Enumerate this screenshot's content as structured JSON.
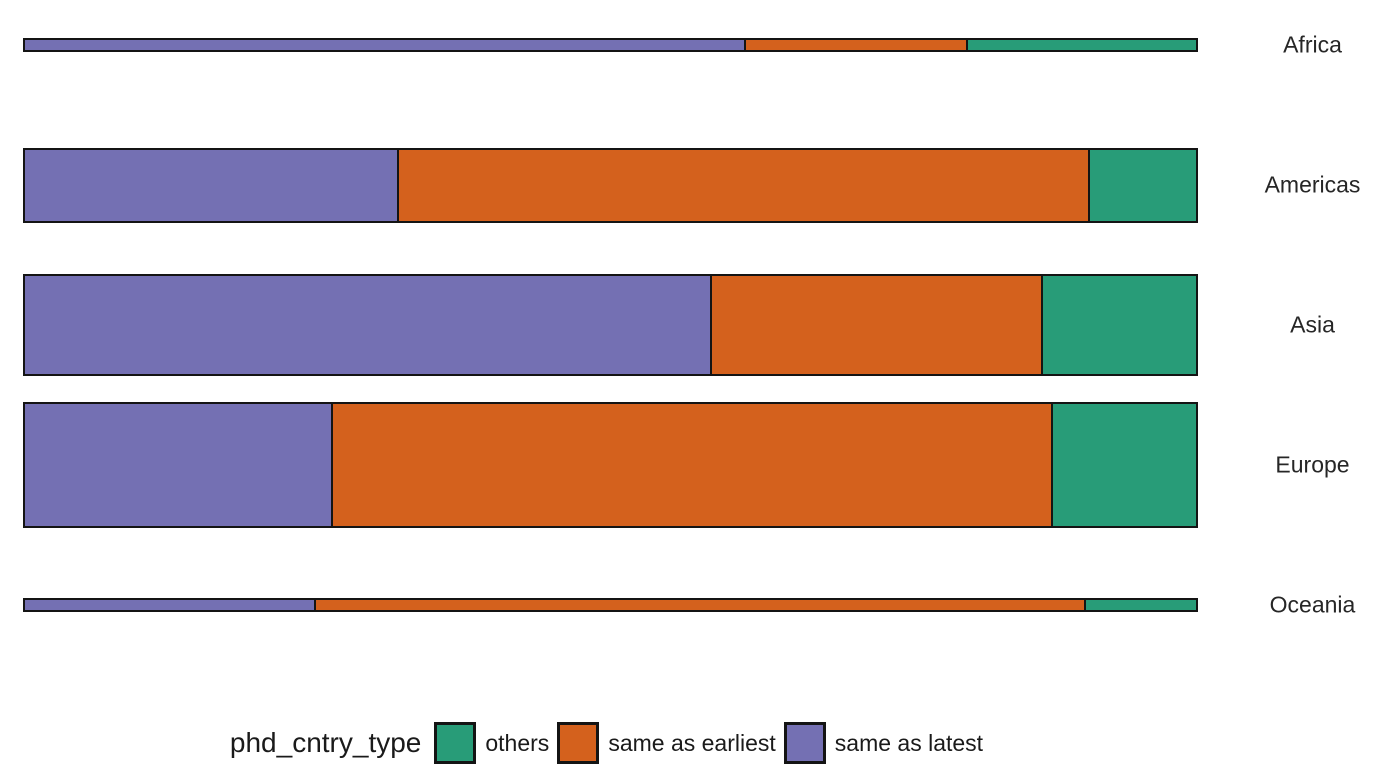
{
  "chart_data": {
    "type": "bar",
    "subtype": "mosaic-stacked-horizontal",
    "title": "",
    "categories": [
      "Africa",
      "Americas",
      "Asia",
      "Europe",
      "Oceania"
    ],
    "group_weights": [
      0.042,
      0.227,
      0.308,
      0.381,
      0.042
    ],
    "series": [
      {
        "name": "same as latest",
        "color": "#7470B3",
        "proportions": [
          0.615,
          0.32,
          0.586,
          0.264,
          0.249
        ]
      },
      {
        "name": "same as earliest",
        "color": "#D4611D",
        "proportions": [
          0.191,
          0.59,
          0.284,
          0.614,
          0.657
        ]
      },
      {
        "name": "others",
        "color": "#289C78",
        "proportions": [
          0.194,
          0.09,
          0.13,
          0.122,
          0.094
        ]
      }
    ],
    "legend": {
      "title": "phd_cntry_type",
      "position": "bottom",
      "items": [
        {
          "label": "others",
          "color": "#289C78"
        },
        {
          "label": "same as earliest",
          "color": "#D4611D"
        },
        {
          "label": "same as latest",
          "color": "#7470B3"
        }
      ]
    },
    "axes": {
      "x_ticks": [],
      "grid": false,
      "category_labels_side": "right"
    },
    "bar_border_color": "#141414"
  }
}
